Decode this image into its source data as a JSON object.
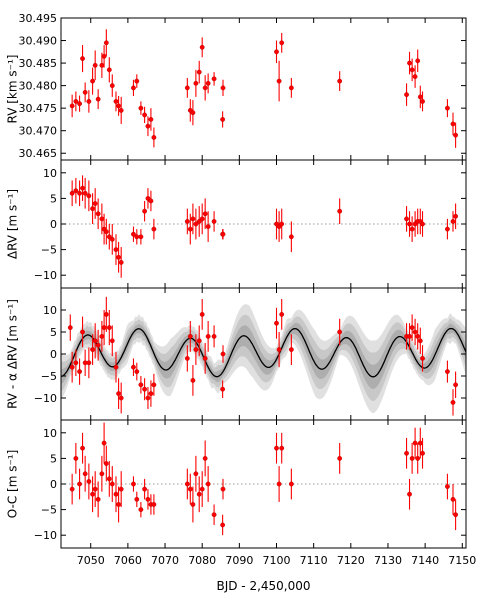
{
  "chart_data": [
    {
      "type": "scatter",
      "ylabel": "RV [km s⁻¹]",
      "xlim": [
        7042,
        7151
      ],
      "ylim": [
        30.4635,
        30.495
      ],
      "yticks": [
        30.465,
        30.47,
        30.475,
        30.48,
        30.485,
        30.49,
        30.495
      ],
      "ytick_labels": [
        "30.465",
        "30.470",
        "30.475",
        "30.480",
        "30.485",
        "30.490",
        "30.495"
      ],
      "decimals": 3,
      "zero_line": false,
      "series": [
        {
          "color": "#ff0000",
          "x": [
            7045,
            7046,
            7047,
            7047.8,
            7048.5,
            7049.5,
            7050.5,
            7051.2,
            7052,
            7053,
            7053.6,
            7054.2,
            7055,
            7055.8,
            7056.8,
            7057.5,
            7058.2,
            7061.5,
            7062.4,
            7063.5,
            7064.5,
            7065.4,
            7066.2,
            7067,
            7076,
            7076.8,
            7077.5,
            7078.3,
            7079.2,
            7080,
            7080.8,
            7081.6,
            7083.2,
            7085.5,
            7085.6,
            7100,
            7100.7,
            7101.4,
            7104,
            7117,
            7135,
            7135.8,
            7136.5,
            7137.3,
            7138,
            7138.7,
            7139.3,
            7146,
            7147.5,
            7148.2
          ],
          "y": [
            30.4755,
            30.4765,
            30.476,
            30.486,
            30.4785,
            30.4765,
            30.481,
            30.4845,
            30.477,
            30.4845,
            30.4865,
            30.4895,
            30.4835,
            30.48,
            30.4765,
            30.4755,
            30.4745,
            30.4795,
            30.481,
            30.475,
            30.4735,
            30.471,
            30.4725,
            30.4685,
            30.4795,
            30.4745,
            30.474,
            30.4805,
            30.483,
            30.4885,
            30.4795,
            30.4805,
            30.4815,
            30.4725,
            30.4795,
            30.4875,
            30.481,
            30.4895,
            30.4795,
            30.481,
            30.478,
            30.485,
            30.4835,
            30.482,
            30.4855,
            30.4775,
            30.4765,
            30.475,
            30.4715,
            30.469
          ],
          "err": [
            0.0025,
            0.0022,
            0.0018,
            0.003,
            0.0022,
            0.0025,
            0.003,
            0.0033,
            0.0022,
            0.0028,
            0.0025,
            0.003,
            0.0028,
            0.0025,
            0.0022,
            0.0022,
            0.003,
            0.0018,
            0.0015,
            0.0015,
            0.0018,
            0.0022,
            0.0025,
            0.0022,
            0.0022,
            0.0025,
            0.0028,
            0.003,
            0.0025,
            0.0022,
            0.0028,
            0.0022,
            0.0015,
            0.0018,
            0.0018,
            0.0025,
            0.0045,
            0.0022,
            0.0022,
            0.0022,
            0.0025,
            0.0025,
            0.0025,
            0.0025,
            0.0025,
            0.0025,
            0.0022,
            0.002,
            0.0025,
            0.0028
          ]
        }
      ]
    },
    {
      "type": "scatter",
      "ylabel": "ΔRV [m s⁻¹]",
      "xlim": [
        7042,
        7151
      ],
      "ylim": [
        -12.5,
        12.5
      ],
      "yticks": [
        -10,
        -5,
        0,
        5,
        10
      ],
      "ytick_labels": [
        "−10",
        "−5",
        "0",
        "5",
        "10"
      ],
      "decimals": 0,
      "zero_line": true,
      "series": [
        {
          "color": "#ff0000",
          "x": [
            7045,
            7046,
            7047,
            7047.8,
            7048.5,
            7049.5,
            7050.5,
            7051.2,
            7052,
            7053,
            7053.6,
            7054.2,
            7055,
            7055.8,
            7056.8,
            7057.5,
            7058.2,
            7061.5,
            7062.4,
            7063.5,
            7064.5,
            7065.4,
            7066.2,
            7067,
            7076,
            7076.8,
            7077.5,
            7078.3,
            7079.2,
            7080,
            7080.8,
            7081.6,
            7083.2,
            7085.5,
            7085.6,
            7100,
            7100.7,
            7101.4,
            7104,
            7117,
            7135,
            7135.8,
            7136.5,
            7137.3,
            7138,
            7138.7,
            7139.3,
            7146,
            7147.5,
            7148.2
          ],
          "y": [
            6,
            6.5,
            6,
            7,
            6,
            5.5,
            3,
            4,
            2,
            1,
            -1,
            -1.5,
            -2.5,
            -3,
            -5,
            -6.5,
            -7.5,
            -2,
            -2.5,
            -2.5,
            2.5,
            5,
            4.5,
            -1,
            0.5,
            -1,
            1,
            0,
            0.5,
            1,
            2,
            -0.5,
            0.5,
            -2,
            -2,
            0,
            -0.5,
            0,
            -2.5,
            2.5,
            1,
            0,
            -1,
            0,
            0.5,
            0.5,
            0,
            -1,
            0.5,
            1.5
          ],
          "err": [
            2.5,
            2.5,
            2.5,
            2.5,
            3,
            3,
            3,
            3,
            3,
            3,
            3,
            2.5,
            2.5,
            3,
            3,
            3,
            3,
            1.5,
            1.5,
            1.5,
            2,
            2,
            2,
            2,
            2.5,
            3,
            3,
            3,
            3,
            3,
            3,
            3,
            2,
            1,
            1,
            3,
            3,
            3,
            3,
            2.5,
            2.5,
            2.5,
            2.5,
            2.5,
            2.5,
            2.5,
            2.5,
            2,
            2,
            2.5
          ]
        }
      ]
    },
    {
      "type": "scatter",
      "ylabel": "RV - α ΔRV [m s⁻¹]",
      "xlim": [
        7042,
        7151
      ],
      "ylim": [
        -15,
        15
      ],
      "yticks": [
        -10,
        -5,
        0,
        5,
        10
      ],
      "ytick_labels": [
        "−10",
        "−5",
        "0",
        "5",
        "10"
      ],
      "decimals": 0,
      "zero_line": false,
      "model": {
        "mean": 0.3,
        "amp1": 4.2,
        "period1": 14.0,
        "phase1": 7045.5,
        "amp2": 1.3,
        "period2": 43.0,
        "phase2": 7050,
        "bands": [
          {
            "sigma": 1.0,
            "color": "#aeaeae"
          },
          {
            "sigma": 2.0,
            "color": "#c8c8c8"
          },
          {
            "sigma": 3.0,
            "color": "#e0e0e0"
          }
        ],
        "band_base": 0.9,
        "band_grow": 2.4
      },
      "series": [
        {
          "color": "#ff0000",
          "x": [
            7044.5,
            7045,
            7046,
            7047,
            7047.8,
            7048.5,
            7049.5,
            7050.5,
            7051.2,
            7052,
            7053,
            7053.6,
            7054.2,
            7055,
            7055.8,
            7056.8,
            7057.5,
            7058.2,
            7061.5,
            7062.4,
            7063.5,
            7064.5,
            7065.4,
            7066.2,
            7067,
            7076,
            7076.8,
            7077.5,
            7078.3,
            7079.2,
            7080,
            7080.8,
            7081.6,
            7083.2,
            7085.5,
            7085.6,
            7100,
            7100.7,
            7101.4,
            7104,
            7117,
            7135,
            7135.8,
            7136.5,
            7137.3,
            7138,
            7138.7,
            7139.3,
            7146,
            7147.5,
            7148.2
          ],
          "y": [
            6,
            -3,
            -2,
            -4,
            5,
            -2,
            -2,
            1,
            3,
            2,
            4,
            6,
            9,
            6,
            3,
            -3,
            -9,
            -10,
            -3,
            -4,
            -7,
            -8,
            -10,
            -9,
            -7,
            -1,
            4,
            -6,
            1,
            3,
            9,
            -1,
            4,
            4,
            -8,
            0,
            7,
            1,
            9,
            1,
            5,
            4,
            4,
            6,
            5,
            4,
            3,
            -1,
            -4,
            -11,
            -7
          ],
          "err": [
            3,
            3.5,
            3,
            3,
            3.5,
            3,
            3.5,
            3.5,
            4,
            3.5,
            3.5,
            4,
            4,
            4,
            3.5,
            3.5,
            3.5,
            3.5,
            2,
            2,
            2,
            2.5,
            2.5,
            3,
            2.5,
            3,
            3.5,
            3.5,
            3.5,
            3.5,
            3.5,
            3.5,
            3.5,
            2.5,
            2,
            2,
            3.5,
            4,
            3.5,
            3.5,
            3,
            3,
            3,
            3,
            3,
            3,
            3,
            3,
            2.5,
            3,
            3
          ]
        }
      ]
    },
    {
      "type": "scatter",
      "ylabel": "O-C [m s⁻¹]",
      "xlabel": "BJD - 2,450,000",
      "xlim": [
        7042,
        7151
      ],
      "ylim": [
        -12.5,
        12.5
      ],
      "yticks": [
        -10,
        -5,
        0,
        5,
        10
      ],
      "ytick_labels": [
        "−10",
        "−5",
        "0",
        "5",
        "10"
      ],
      "xticks": [
        7050,
        7060,
        7070,
        7080,
        7090,
        7100,
        7110,
        7120,
        7130,
        7140,
        7150
      ],
      "xtick_labels": [
        "7050",
        "7060",
        "7070",
        "7080",
        "7090",
        "7100",
        "7110",
        "7120",
        "7130",
        "7140",
        "7150"
      ],
      "decimals": 0,
      "zero_line": true,
      "series": [
        {
          "color": "#ff0000",
          "x": [
            7045,
            7046,
            7047,
            7047.8,
            7048.5,
            7049.5,
            7050.5,
            7051.2,
            7052,
            7053,
            7053.6,
            7054.2,
            7055,
            7055.8,
            7056.8,
            7057.5,
            7058.2,
            7061.5,
            7062.4,
            7063.5,
            7064.5,
            7065.4,
            7066.2,
            7067,
            7076,
            7076.8,
            7077.5,
            7078.3,
            7079.2,
            7080,
            7080.8,
            7081.6,
            7083.2,
            7085.5,
            7085.6,
            7100,
            7100.7,
            7101.4,
            7104,
            7117,
            7135,
            7135.8,
            7136.5,
            7137.3,
            7138,
            7138.7,
            7139.3,
            7146,
            7147.5,
            7148.2
          ],
          "y": [
            -1,
            5,
            0,
            7,
            2,
            0.5,
            -2,
            -1,
            -3,
            2,
            8,
            4,
            1,
            0,
            -2,
            -4,
            -1,
            0,
            -3,
            -5,
            -1,
            -3,
            -4,
            -4,
            0,
            -1,
            -4,
            2,
            -2,
            -1,
            5,
            0,
            -6,
            -8,
            -1,
            7,
            0,
            7,
            0,
            5,
            6,
            -2,
            5,
            8,
            5,
            8,
            6,
            -0.5,
            -3,
            -6
          ],
          "err": [
            3,
            3,
            3,
            3,
            3.5,
            3.5,
            3.5,
            3.5,
            3.5,
            3.5,
            4,
            3.5,
            3.5,
            3.5,
            3.5,
            3.5,
            3.5,
            1.5,
            1.5,
            1.5,
            2,
            2,
            2,
            2,
            3,
            3,
            3.5,
            3.5,
            3.5,
            3.5,
            3.5,
            3.5,
            2,
            2,
            2,
            3,
            3.5,
            3,
            3,
            3,
            3,
            3,
            3,
            3,
            3,
            3,
            3,
            2.5,
            3,
            3
          ]
        }
      ]
    }
  ]
}
